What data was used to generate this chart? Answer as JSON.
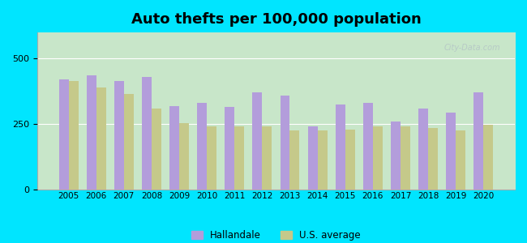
{
  "title": "Auto thefts per 100,000 population",
  "years": [
    2005,
    2006,
    2007,
    2008,
    2009,
    2010,
    2011,
    2012,
    2013,
    2014,
    2015,
    2016,
    2017,
    2018,
    2019,
    2020
  ],
  "hallandale": [
    420,
    435,
    415,
    430,
    320,
    330,
    315,
    370,
    360,
    240,
    325,
    330,
    260,
    310,
    295,
    370
  ],
  "us_average": [
    415,
    390,
    365,
    310,
    255,
    240,
    240,
    240,
    225,
    225,
    230,
    240,
    240,
    235,
    225,
    248
  ],
  "bar_color_hallandale": "#b39ddb",
  "bar_color_us": "#c5c98a",
  "background_outer": "#00e5ff",
  "background_inner_top": "#e8f5e9",
  "background_inner_bottom": "#c8e6c9",
  "ylim": [
    0,
    600
  ],
  "yticks": [
    0,
    250,
    500
  ],
  "legend_hallandale": "Hallandale",
  "legend_us": "U.S. average",
  "watermark": "City-Data.com"
}
